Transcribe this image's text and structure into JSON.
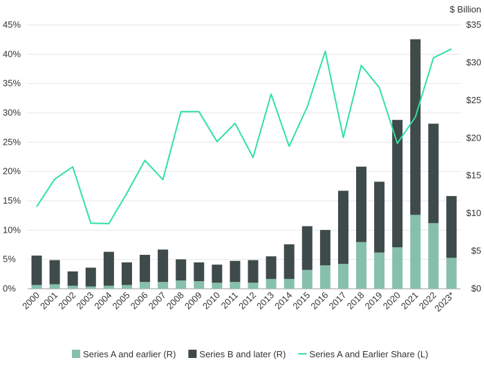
{
  "chart_data": {
    "type": "bar",
    "title": "",
    "xlabel": "",
    "ylabel_left": "",
    "ylabel_right": "$ Billion",
    "categories": [
      "2000",
      "2001",
      "2002",
      "2003",
      "2004",
      "2005",
      "2006",
      "2007",
      "2008",
      "2009",
      "2010",
      "2011",
      "2012",
      "2013",
      "2014",
      "2015",
      "2016",
      "2017",
      "2018",
      "2019",
      "2020",
      "2021",
      "2022",
      "2023*"
    ],
    "series": [
      {
        "name": "Series A and earlier (R)",
        "kind": "stacked-bar",
        "axis": "right",
        "color": "#86c0ad",
        "values": [
          0.5,
          0.6,
          0.4,
          0.3,
          0.4,
          0.5,
          0.9,
          0.9,
          1.1,
          1.0,
          0.8,
          0.9,
          0.8,
          1.3,
          1.3,
          2.5,
          3.1,
          3.3,
          6.2,
          4.8,
          5.5,
          9.8,
          8.7,
          4.1
        ]
      },
      {
        "name": "Series B and later (R)",
        "kind": "stacked-bar",
        "axis": "right",
        "color": "#3f4a4a",
        "values": [
          3.9,
          3.2,
          1.9,
          2.5,
          4.5,
          3.0,
          3.6,
          4.3,
          2.8,
          2.5,
          2.4,
          2.8,
          3.0,
          3.0,
          4.6,
          5.8,
          4.7,
          9.7,
          10.0,
          9.4,
          16.9,
          23.3,
          13.2,
          8.2
        ]
      },
      {
        "name": "Series A and Earlier Share (L)",
        "kind": "line",
        "axis": "left",
        "color": "#2fe0a3",
        "values": [
          14.0,
          18.7,
          20.8,
          11.2,
          11.1,
          16.3,
          21.9,
          18.6,
          30.2,
          30.2,
          25.1,
          28.2,
          22.4,
          33.2,
          24.3,
          31.0,
          40.5,
          25.8,
          38.1,
          34.3,
          24.8,
          29.3,
          39.4,
          40.9
        ]
      }
    ],
    "ylim_left": [
      0,
      45
    ],
    "yticks_left": [
      "0%",
      "5%",
      "10%",
      "15%",
      "20%",
      "25%",
      "30%",
      "35%",
      "40%",
      "45%"
    ],
    "ylim_right": [
      0,
      35
    ],
    "yticks_right": [
      "$0",
      "$5",
      "$10",
      "$15",
      "$20",
      "$25",
      "$30",
      "$35"
    ],
    "grid": "horizontal",
    "legend_position": "bottom"
  }
}
